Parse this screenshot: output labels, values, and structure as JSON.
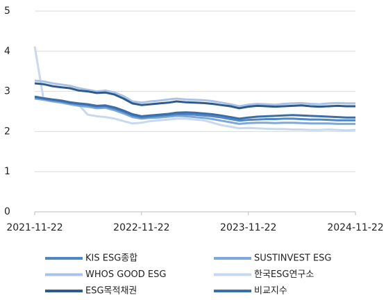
{
  "chart_data": {
    "type": "line",
    "x": [
      "2021-11-22",
      "2021-12-22",
      "2022-01-22",
      "2022-02-22",
      "2022-03-22",
      "2022-04-22",
      "2022-05-22",
      "2022-06-22",
      "2022-07-22",
      "2022-08-22",
      "2022-09-22",
      "2022-10-22",
      "2022-11-22",
      "2022-12-22",
      "2023-01-22",
      "2023-02-22",
      "2023-03-22",
      "2023-04-22",
      "2023-05-22",
      "2023-06-22",
      "2023-07-22",
      "2023-08-22",
      "2023-09-22",
      "2023-10-22",
      "2023-11-22",
      "2023-12-22",
      "2024-01-22",
      "2024-02-22",
      "2024-03-22",
      "2024-04-22",
      "2024-05-22",
      "2024-06-22",
      "2024-07-22",
      "2024-08-22",
      "2024-09-22",
      "2024-10-22",
      "2024-11-22"
    ],
    "series": [
      {
        "name": "KIS ESG종합",
        "color": "#4f86c6",
        "values": [
          2.85,
          2.82,
          2.78,
          2.75,
          2.71,
          2.68,
          2.66,
          2.62,
          2.63,
          2.57,
          2.49,
          2.4,
          2.35,
          2.37,
          2.39,
          2.41,
          2.43,
          2.43,
          2.42,
          2.4,
          2.38,
          2.35,
          2.31,
          2.27,
          2.29,
          2.3,
          2.31,
          2.31,
          2.32,
          2.32,
          2.31,
          2.3,
          2.3,
          2.29,
          2.28,
          2.28,
          2.28
        ]
      },
      {
        "name": "SUSTINVEST ESG",
        "color": "#7ea8da",
        "values": [
          2.82,
          2.79,
          2.75,
          2.72,
          2.68,
          2.64,
          2.62,
          2.58,
          2.59,
          2.53,
          2.45,
          2.36,
          2.32,
          2.34,
          2.35,
          2.37,
          2.39,
          2.38,
          2.36,
          2.34,
          2.31,
          2.27,
          2.23,
          2.19,
          2.21,
          2.22,
          2.22,
          2.21,
          2.22,
          2.22,
          2.21,
          2.2,
          2.2,
          2.2,
          2.19,
          2.19,
          2.19
        ]
      },
      {
        "name": "WHOS GOOD ESG",
        "color": "#a8c3e6",
        "values": [
          3.27,
          3.25,
          3.2,
          3.17,
          3.14,
          3.08,
          3.04,
          3.0,
          3.02,
          2.97,
          2.88,
          2.75,
          2.72,
          2.75,
          2.77,
          2.8,
          2.82,
          2.8,
          2.79,
          2.78,
          2.76,
          2.72,
          2.68,
          2.63,
          2.67,
          2.69,
          2.68,
          2.67,
          2.69,
          2.7,
          2.71,
          2.69,
          2.68,
          2.7,
          2.71,
          2.7,
          2.7
        ]
      },
      {
        "name": "한국ESG연구소",
        "color": "#c8d8ef",
        "values": [
          4.12,
          2.82,
          2.78,
          2.74,
          2.7,
          2.66,
          2.42,
          2.38,
          2.36,
          2.32,
          2.26,
          2.2,
          2.22,
          2.26,
          2.28,
          2.3,
          2.32,
          2.32,
          2.3,
          2.28,
          2.22,
          2.16,
          2.12,
          2.08,
          2.09,
          2.08,
          2.07,
          2.06,
          2.06,
          2.05,
          2.05,
          2.04,
          2.04,
          2.05,
          2.04,
          2.03,
          2.04
        ]
      },
      {
        "name": "ESG목적채권",
        "color": "#2e5b8c",
        "values": [
          3.2,
          3.18,
          3.13,
          3.1,
          3.08,
          3.02,
          3.0,
          2.96,
          2.97,
          2.92,
          2.82,
          2.7,
          2.66,
          2.68,
          2.7,
          2.72,
          2.75,
          2.73,
          2.72,
          2.71,
          2.69,
          2.66,
          2.63,
          2.58,
          2.62,
          2.64,
          2.63,
          2.62,
          2.63,
          2.64,
          2.65,
          2.63,
          2.62,
          2.63,
          2.64,
          2.63,
          2.63
        ]
      },
      {
        "name": "비교지수",
        "color": "#3b6ea6",
        "values": [
          2.87,
          2.83,
          2.8,
          2.77,
          2.73,
          2.7,
          2.68,
          2.64,
          2.65,
          2.6,
          2.52,
          2.43,
          2.38,
          2.4,
          2.42,
          2.44,
          2.47,
          2.48,
          2.47,
          2.45,
          2.43,
          2.4,
          2.36,
          2.32,
          2.35,
          2.37,
          2.38,
          2.39,
          2.4,
          2.41,
          2.4,
          2.39,
          2.38,
          2.37,
          2.36,
          2.35,
          2.35
        ]
      }
    ],
    "xlim": [
      "2021-11-22",
      "2024-11-22"
    ],
    "xticks": [
      "2021-11-22",
      "2022-11-22",
      "2023-11-22",
      "2024-11-22"
    ],
    "ylim": [
      0,
      5
    ],
    "yticks": [
      0,
      1,
      2,
      3,
      4,
      5
    ],
    "grid": true
  }
}
